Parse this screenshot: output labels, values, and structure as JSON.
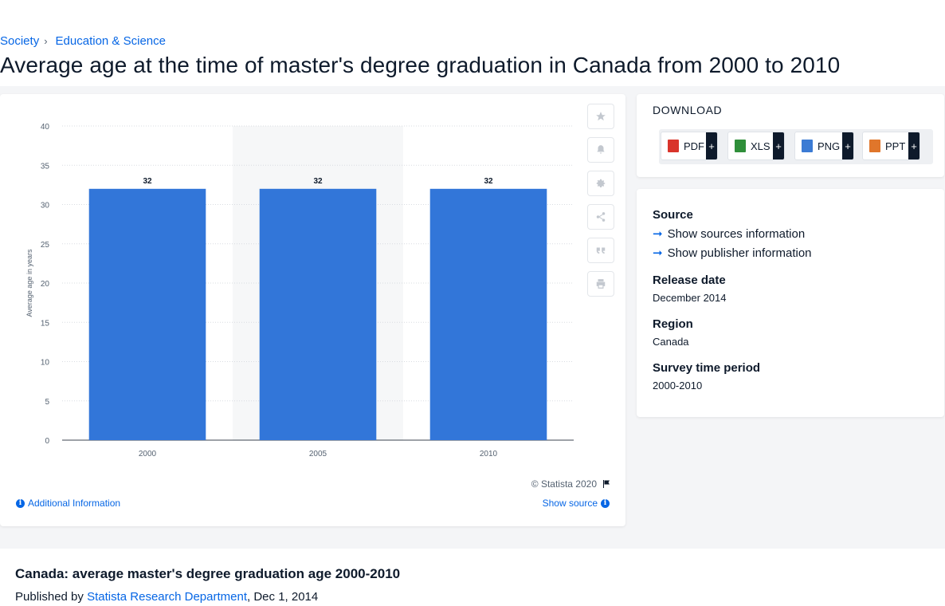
{
  "breadcrumb": {
    "level1": "Society",
    "level2": "Education & Science"
  },
  "page_title": "Average age at the time of master's degree graduation in Canada from 2000 to 2010",
  "toolbar": {
    "icons": [
      "star-icon",
      "bell-icon",
      "gear-icon",
      "share-icon",
      "quote-icon",
      "print-icon"
    ]
  },
  "chart_footer": {
    "copyright": "© Statista 2020",
    "additional_info": "Additional Information",
    "show_source": "Show source"
  },
  "download": {
    "title": "DOWNLOAD",
    "formats": [
      {
        "label": "PDF",
        "color": "#d9342b"
      },
      {
        "label": "XLS",
        "color": "#2f8f3a"
      },
      {
        "label": "PNG",
        "color": "#3b7bd4"
      },
      {
        "label": "PPT",
        "color": "#e0762b"
      }
    ],
    "plus": "+"
  },
  "meta": {
    "source_label": "Source",
    "show_sources": "Show sources information",
    "show_publisher": "Show publisher information",
    "release_label": "Release date",
    "release_value": "December 2014",
    "region_label": "Region",
    "region_value": "Canada",
    "survey_label": "Survey time period",
    "survey_value": "2000-2010"
  },
  "bottom": {
    "title": "Canada: average master's degree graduation age 2000-2010",
    "published_by": "Published by",
    "publisher": "Statista Research Department",
    "date": ", Dec 1, 2014"
  },
  "chart_data": {
    "type": "bar",
    "categories": [
      "2000",
      "2005",
      "2010"
    ],
    "values": [
      32,
      32,
      32
    ],
    "data_labels": [
      "32",
      "32",
      "32"
    ],
    "ylabel": "Average age in years",
    "ylim": [
      0,
      40
    ],
    "yticks": [
      0,
      5,
      10,
      15,
      20,
      25,
      30,
      35,
      40
    ],
    "grid": true,
    "bar_color": "#3276d9",
    "highlight_category": "2005"
  }
}
